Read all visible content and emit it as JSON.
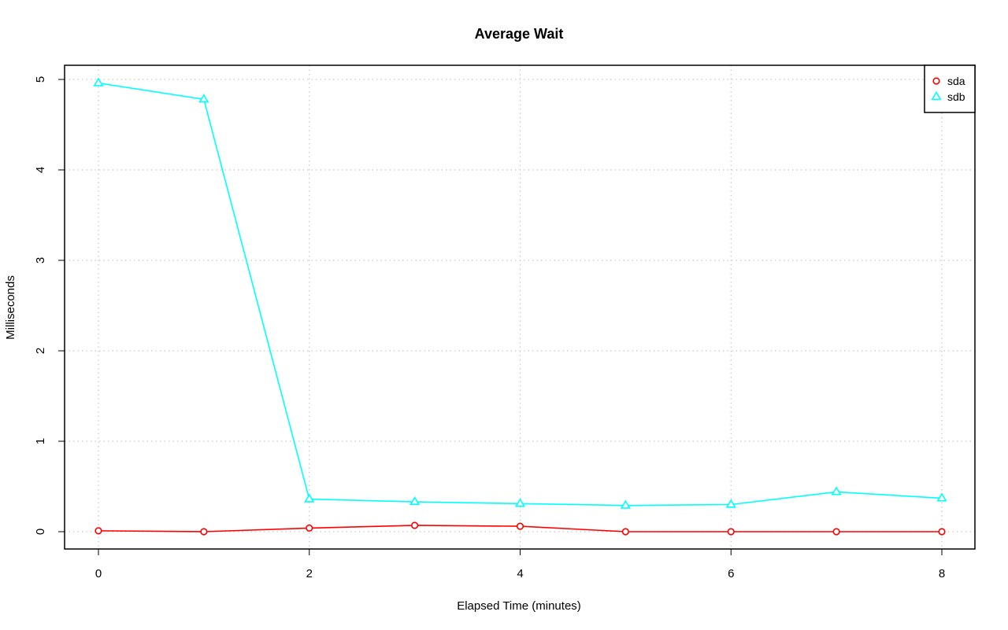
{
  "chart_data": {
    "type": "line",
    "title": "Average Wait",
    "xlabel": "Elapsed Time (minutes)",
    "ylabel": "Milliseconds",
    "x": [
      0,
      1,
      2,
      3,
      4,
      5,
      6,
      7,
      8
    ],
    "xlim": [
      0,
      8
    ],
    "ylim": [
      0,
      5
    ],
    "xticks": [
      0,
      2,
      4,
      6,
      8
    ],
    "yticks": [
      0,
      1,
      2,
      3,
      4,
      5
    ],
    "grid": true,
    "legend_position": "top-right",
    "series": [
      {
        "name": "sda",
        "color": "#ff0000",
        "marker": "circle",
        "values": [
          0.01,
          0.0,
          0.04,
          0.07,
          0.06,
          0.0,
          0.0,
          0.0,
          0.0
        ]
      },
      {
        "name": "sdb",
        "color": "#00ffff",
        "marker": "triangle",
        "values": [
          4.96,
          4.78,
          0.36,
          0.33,
          0.31,
          0.29,
          0.3,
          0.44,
          0.37
        ]
      }
    ]
  }
}
